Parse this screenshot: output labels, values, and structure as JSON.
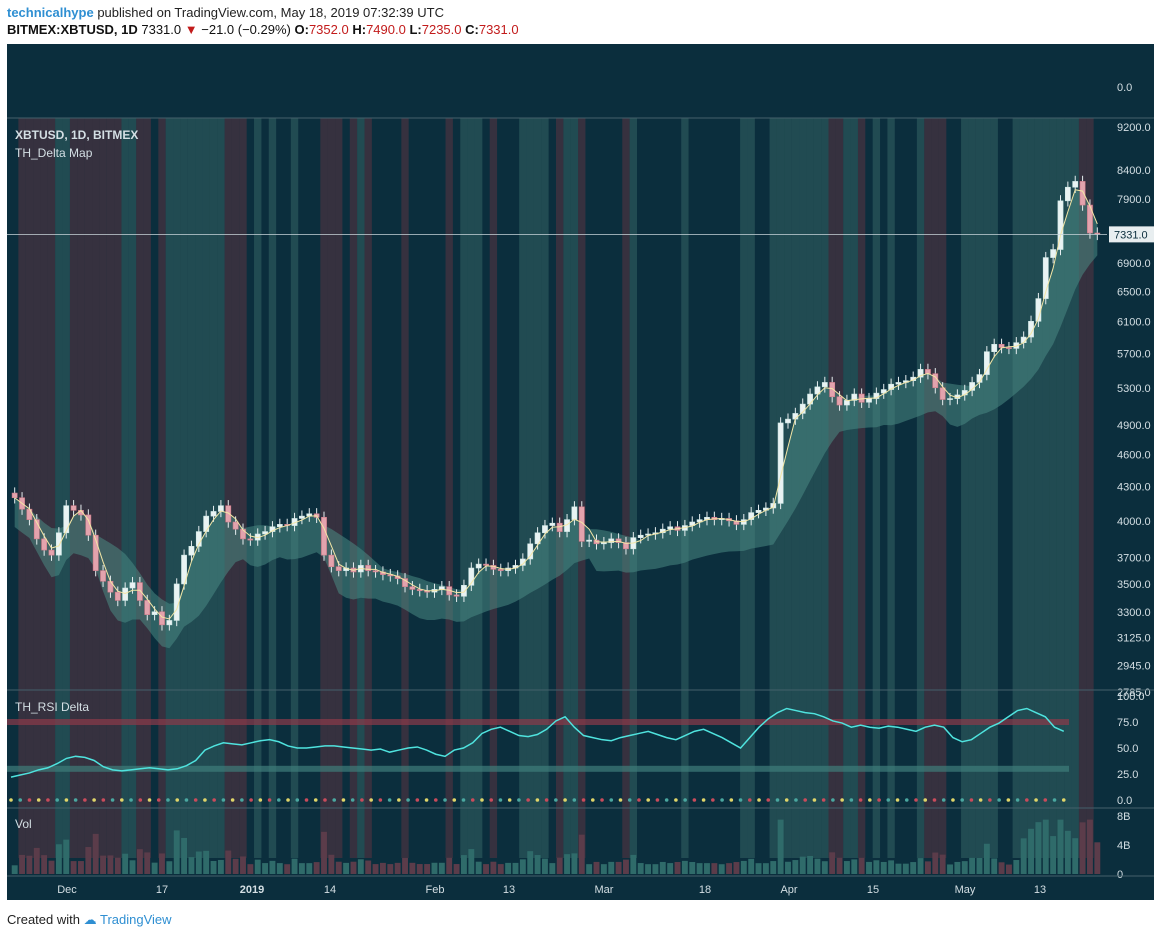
{
  "header": {
    "user": "technicalhype",
    "published": "published on TradingView.com, May 18, 2019 07:32:39 UTC",
    "symbol_line": "BITMEX:XBTUSD, 1D",
    "last": "7331.0",
    "change": "−21.0 (−0.29%)",
    "o_label": "O:",
    "o": "7352.0",
    "h_label": "H:",
    "h": "7490.0",
    "l_label": "L:",
    "l": "7235.0",
    "c_label": "C:",
    "c": "7331.0"
  },
  "footer": {
    "created": "Created with",
    "brand": "TradingView"
  },
  "colors": {
    "background": "#0b2e3d",
    "bull": "#26a69a",
    "bear": "#ef5350",
    "band_green": "#3b6f6d",
    "band_red": "#6a3543",
    "text": "#d4dfe4",
    "price_line": "#c8d4d9"
  },
  "chart_data": {
    "type": "candlestick",
    "symbol": "XBTUSD, 1D, BITMEX",
    "indicator": "TH_Delta Map",
    "last_price": "7331.0",
    "top_pane_label": "0.0",
    "price_axis_ticks": [
      "9200.0",
      "8400.0",
      "7900.0",
      "6900.0",
      "6500.0",
      "6100.0",
      "5700.0",
      "5300.0",
      "4900.0",
      "4600.0",
      "4300.0",
      "4000.0",
      "3700.0",
      "3500.0",
      "3300.0",
      "3125.0",
      "2945.0",
      "2785.0"
    ],
    "x_axis_labels": [
      "Dec",
      "17",
      "2019",
      "14",
      "Feb",
      "13",
      "Mar",
      "18",
      "Apr",
      "15",
      "May",
      "13"
    ],
    "close_series": [
      4200,
      4100,
      4010,
      3850,
      3760,
      3720,
      3900,
      4130,
      4090,
      4050,
      3880,
      3600,
      3520,
      3440,
      3380,
      3470,
      3510,
      3380,
      3280,
      3300,
      3210,
      3240,
      3500,
      3720,
      3790,
      3910,
      4040,
      4080,
      4130,
      3990,
      3930,
      3850,
      3840,
      3890,
      3910,
      3950,
      3970,
      3960,
      4020,
      4040,
      4060,
      4030,
      3720,
      3630,
      3600,
      3620,
      3590,
      3640,
      3600,
      3590,
      3570,
      3560,
      3540,
      3480,
      3460,
      3450,
      3440,
      3460,
      3480,
      3420,
      3410,
      3490,
      3620,
      3650,
      3640,
      3610,
      3600,
      3620,
      3640,
      3690,
      3810,
      3900,
      3960,
      3980,
      3910,
      4010,
      4120,
      3830,
      3840,
      3810,
      3820,
      3850,
      3820,
      3770,
      3860,
      3880,
      3890,
      3900,
      3930,
      3950,
      3920,
      3960,
      3990,
      4010,
      4030,
      4010,
      4020,
      4000,
      3970,
      4010,
      4070,
      4090,
      4110,
      4150,
      4920,
      4960,
      5020,
      5120,
      5230,
      5310,
      5360,
      5200,
      5110,
      5160,
      5230,
      5140,
      5180,
      5240,
      5280,
      5340,
      5360,
      5380,
      5420,
      5510,
      5460,
      5300,
      5170,
      5180,
      5220,
      5270,
      5360,
      5450,
      5720,
      5810,
      5770,
      5760,
      5830,
      5900,
      6100,
      6400,
      6980,
      7100,
      7870,
      8100,
      8200,
      7800,
      7352,
      7331
    ],
    "rsi_pane": {
      "label": "TH_RSI Delta",
      "ticks": [
        "100.0",
        "75.0",
        "50.0",
        "25.0",
        "0.0"
      ],
      "upper_level": 75,
      "lower_level": 30,
      "rsi": [
        22,
        24,
        26,
        29,
        31,
        35,
        40,
        42,
        41,
        38,
        32,
        29,
        28,
        29,
        30,
        31,
        30,
        29,
        30,
        33,
        38,
        48,
        52,
        55,
        54,
        53,
        55,
        57,
        58,
        56,
        52,
        50,
        50,
        51,
        52,
        52,
        51,
        50,
        49,
        48,
        49,
        46,
        48,
        50,
        51,
        48,
        44,
        42,
        48,
        50,
        55,
        64,
        68,
        70,
        66,
        62,
        61,
        63,
        68,
        76,
        80,
        70,
        62,
        60,
        58,
        57,
        60,
        62,
        64,
        66,
        63,
        60,
        58,
        62,
        66,
        68,
        64,
        60,
        55,
        50,
        60,
        70,
        78,
        84,
        88,
        86,
        84,
        83,
        80,
        76,
        74,
        70,
        72,
        70,
        69,
        71,
        70,
        68,
        66,
        70,
        72,
        70,
        60,
        56,
        58,
        64,
        70,
        74,
        80,
        86,
        88,
        84,
        80,
        70,
        66
      ]
    },
    "volume_pane": {
      "label": "Vol",
      "ticks": [
        "8B",
        "4B",
        "0"
      ]
    },
    "price_range": [
      2785,
      9200
    ]
  }
}
